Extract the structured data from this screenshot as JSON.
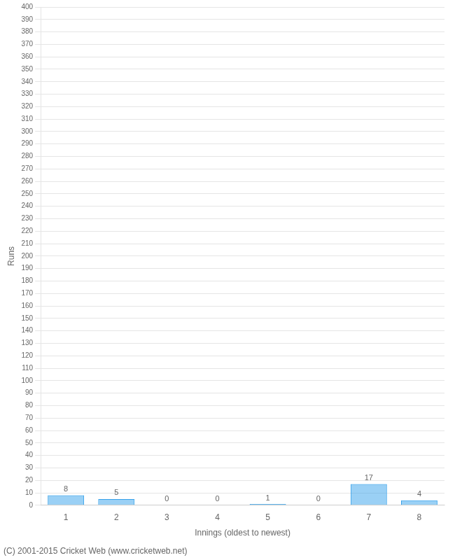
{
  "chart_data": {
    "type": "bar",
    "xlabel": "Innings (oldest to newest)",
    "ylabel": "Runs",
    "categories": [
      1,
      2,
      3,
      4,
      5,
      6,
      7,
      8
    ],
    "values": [
      8,
      5,
      0,
      0,
      1,
      0,
      17,
      4
    ],
    "ylim": [
      0,
      400
    ],
    "yticks": [
      0,
      10,
      20,
      30,
      40,
      50,
      60,
      70,
      80,
      90,
      100,
      110,
      120,
      130,
      140,
      150,
      160,
      170,
      180,
      190,
      200,
      210,
      220,
      230,
      240,
      250,
      260,
      270,
      280,
      290,
      300,
      310,
      320,
      330,
      340,
      350,
      360,
      370,
      380,
      390,
      400
    ],
    "grid": true,
    "data_labels": true,
    "annotations": [
      "(C) 2001-2015 Cricket Web (www.cricketweb.net)"
    ]
  }
}
